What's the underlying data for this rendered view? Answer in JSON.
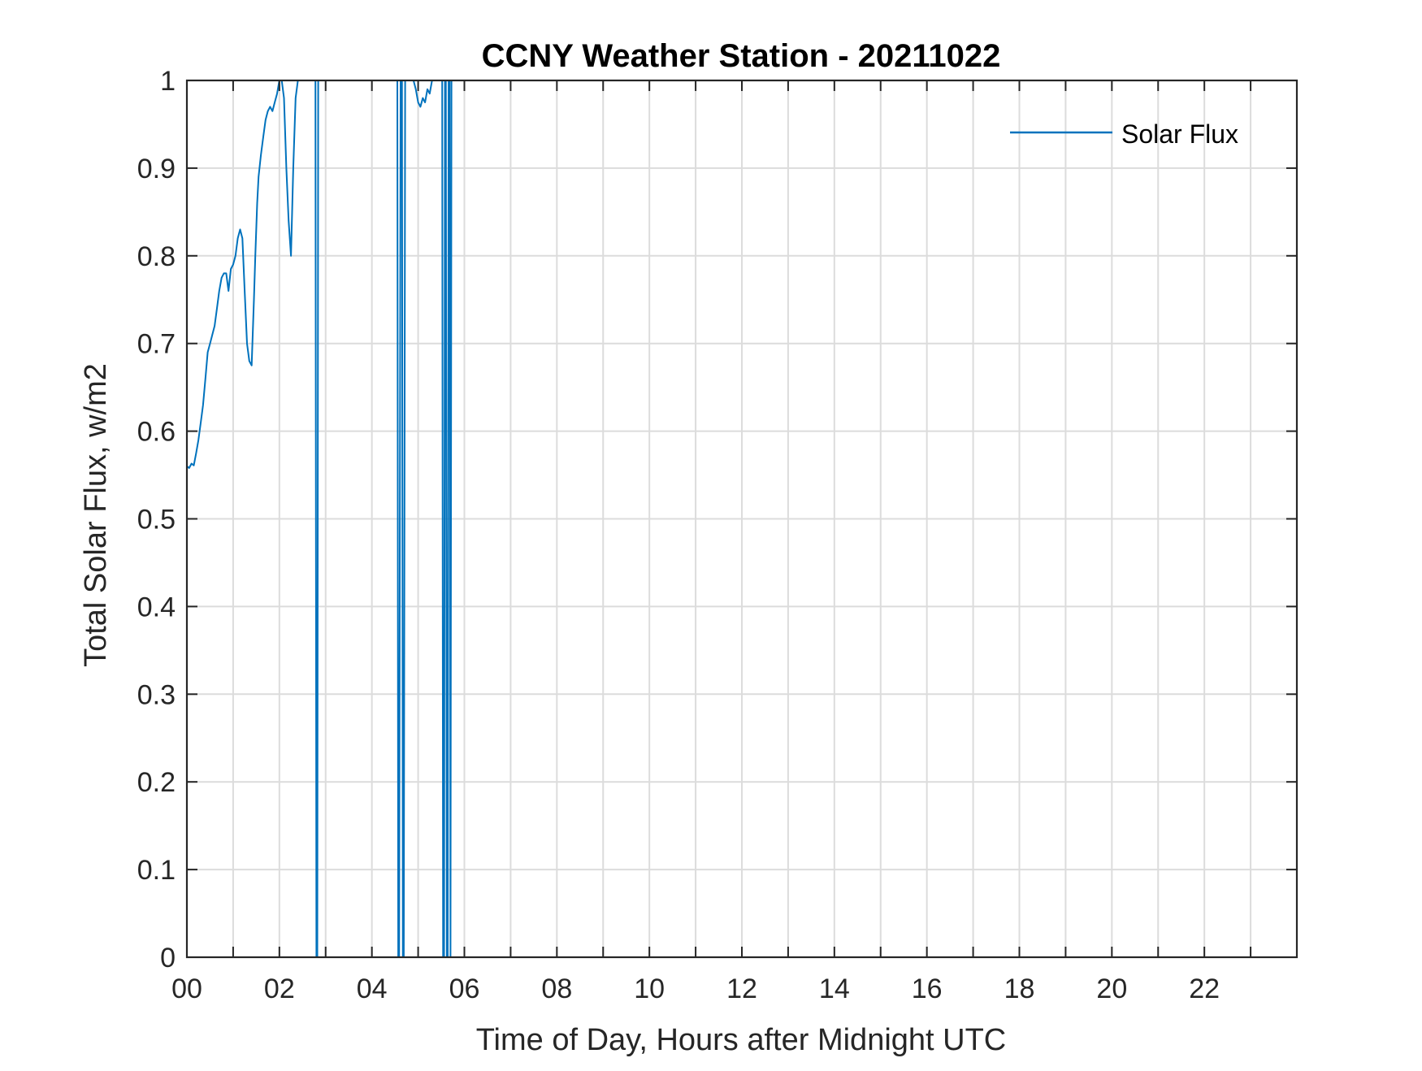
{
  "chart_data": {
    "type": "line",
    "title": "CCNY Weather Station - 20211022",
    "xlabel": "Time of Day, Hours after Midnight UTC",
    "ylabel": "Total Solar Flux, w/m2",
    "xlim": [
      0,
      24
    ],
    "ylim": [
      0,
      1
    ],
    "xticks": [
      0,
      2,
      4,
      6,
      8,
      10,
      12,
      14,
      16,
      18,
      20,
      22
    ],
    "xtick_labels": [
      "00",
      "02",
      "04",
      "06",
      "08",
      "10",
      "12",
      "14",
      "16",
      "18",
      "20",
      "22"
    ],
    "yticks": [
      0,
      0.1,
      0.2,
      0.3,
      0.4,
      0.5,
      0.6,
      0.7,
      0.8,
      0.9,
      1
    ],
    "ytick_labels": [
      "0",
      "0.1",
      "0.2",
      "0.3",
      "0.4",
      "0.5",
      "0.6",
      "0.7",
      "0.8",
      "0.9",
      "1"
    ],
    "x_minor_grid_step": 1,
    "grid": true,
    "legend_position": "top-right",
    "series": [
      {
        "name": "Solar Flux",
        "color": "#0072BD",
        "x": [
          0.0,
          0.05,
          0.1,
          0.15,
          0.2,
          0.25,
          0.3,
          0.35,
          0.4,
          0.45,
          0.5,
          0.55,
          0.6,
          0.65,
          0.7,
          0.75,
          0.8,
          0.85,
          0.9,
          0.95,
          1.0,
          1.05,
          1.1,
          1.15,
          1.2,
          1.25,
          1.3,
          1.35,
          1.4,
          1.45,
          1.48,
          1.52,
          1.55,
          1.6,
          1.65,
          1.7,
          1.75,
          1.8,
          1.85,
          1.9,
          1.95,
          2.0,
          2.05,
          2.1,
          2.15,
          2.2,
          2.25,
          2.3,
          2.35,
          2.4,
          2.45,
          2.5,
          2.55,
          2.6,
          2.65,
          2.7,
          2.75,
          2.78,
          2.8,
          2.82,
          2.84,
          2.86,
          2.88,
          2.9,
          2.92,
          4.55,
          4.57,
          4.59,
          4.62,
          4.65,
          4.67,
          4.69,
          4.72,
          4.74,
          4.76,
          4.78,
          4.8,
          4.85,
          4.9,
          4.95,
          5.0,
          5.05,
          5.1,
          5.15,
          5.2,
          5.25,
          5.3,
          5.35,
          5.4,
          5.45,
          5.5,
          5.52,
          5.54,
          5.56,
          5.58,
          5.6,
          5.62,
          5.64,
          5.66,
          5.68,
          5.7,
          5.72
        ],
        "y": [
          0.56,
          0.558,
          0.563,
          0.561,
          0.575,
          0.59,
          0.61,
          0.63,
          0.66,
          0.69,
          0.7,
          0.71,
          0.72,
          0.74,
          0.76,
          0.775,
          0.78,
          0.78,
          0.76,
          0.785,
          0.79,
          0.8,
          0.82,
          0.83,
          0.82,
          0.76,
          0.7,
          0.68,
          0.675,
          0.75,
          0.8,
          0.86,
          0.89,
          0.915,
          0.935,
          0.955,
          0.965,
          0.97,
          0.965,
          0.975,
          0.985,
          1.0,
          1.0,
          0.98,
          0.9,
          0.84,
          0.8,
          0.9,
          0.98,
          1.0,
          1.0,
          1.0,
          1.0,
          1.0,
          1.0,
          1.0,
          1.0,
          1.0,
          0.0,
          0.0,
          1.0,
          1.0,
          1.0,
          1.0,
          1.0,
          1.0,
          0.0,
          0.0,
          1.0,
          1.0,
          0.0,
          0.0,
          1.0,
          1.0,
          1.0,
          1.0,
          1.0,
          1.0,
          1.0,
          0.99,
          0.975,
          0.97,
          0.98,
          0.975,
          0.99,
          0.985,
          1.0,
          1.0,
          1.0,
          1.0,
          1.0,
          1.0,
          0.0,
          0.0,
          1.0,
          1.0,
          0.0,
          0.0,
          1.0,
          1.0,
          0.0,
          1.0
        ]
      }
    ]
  }
}
